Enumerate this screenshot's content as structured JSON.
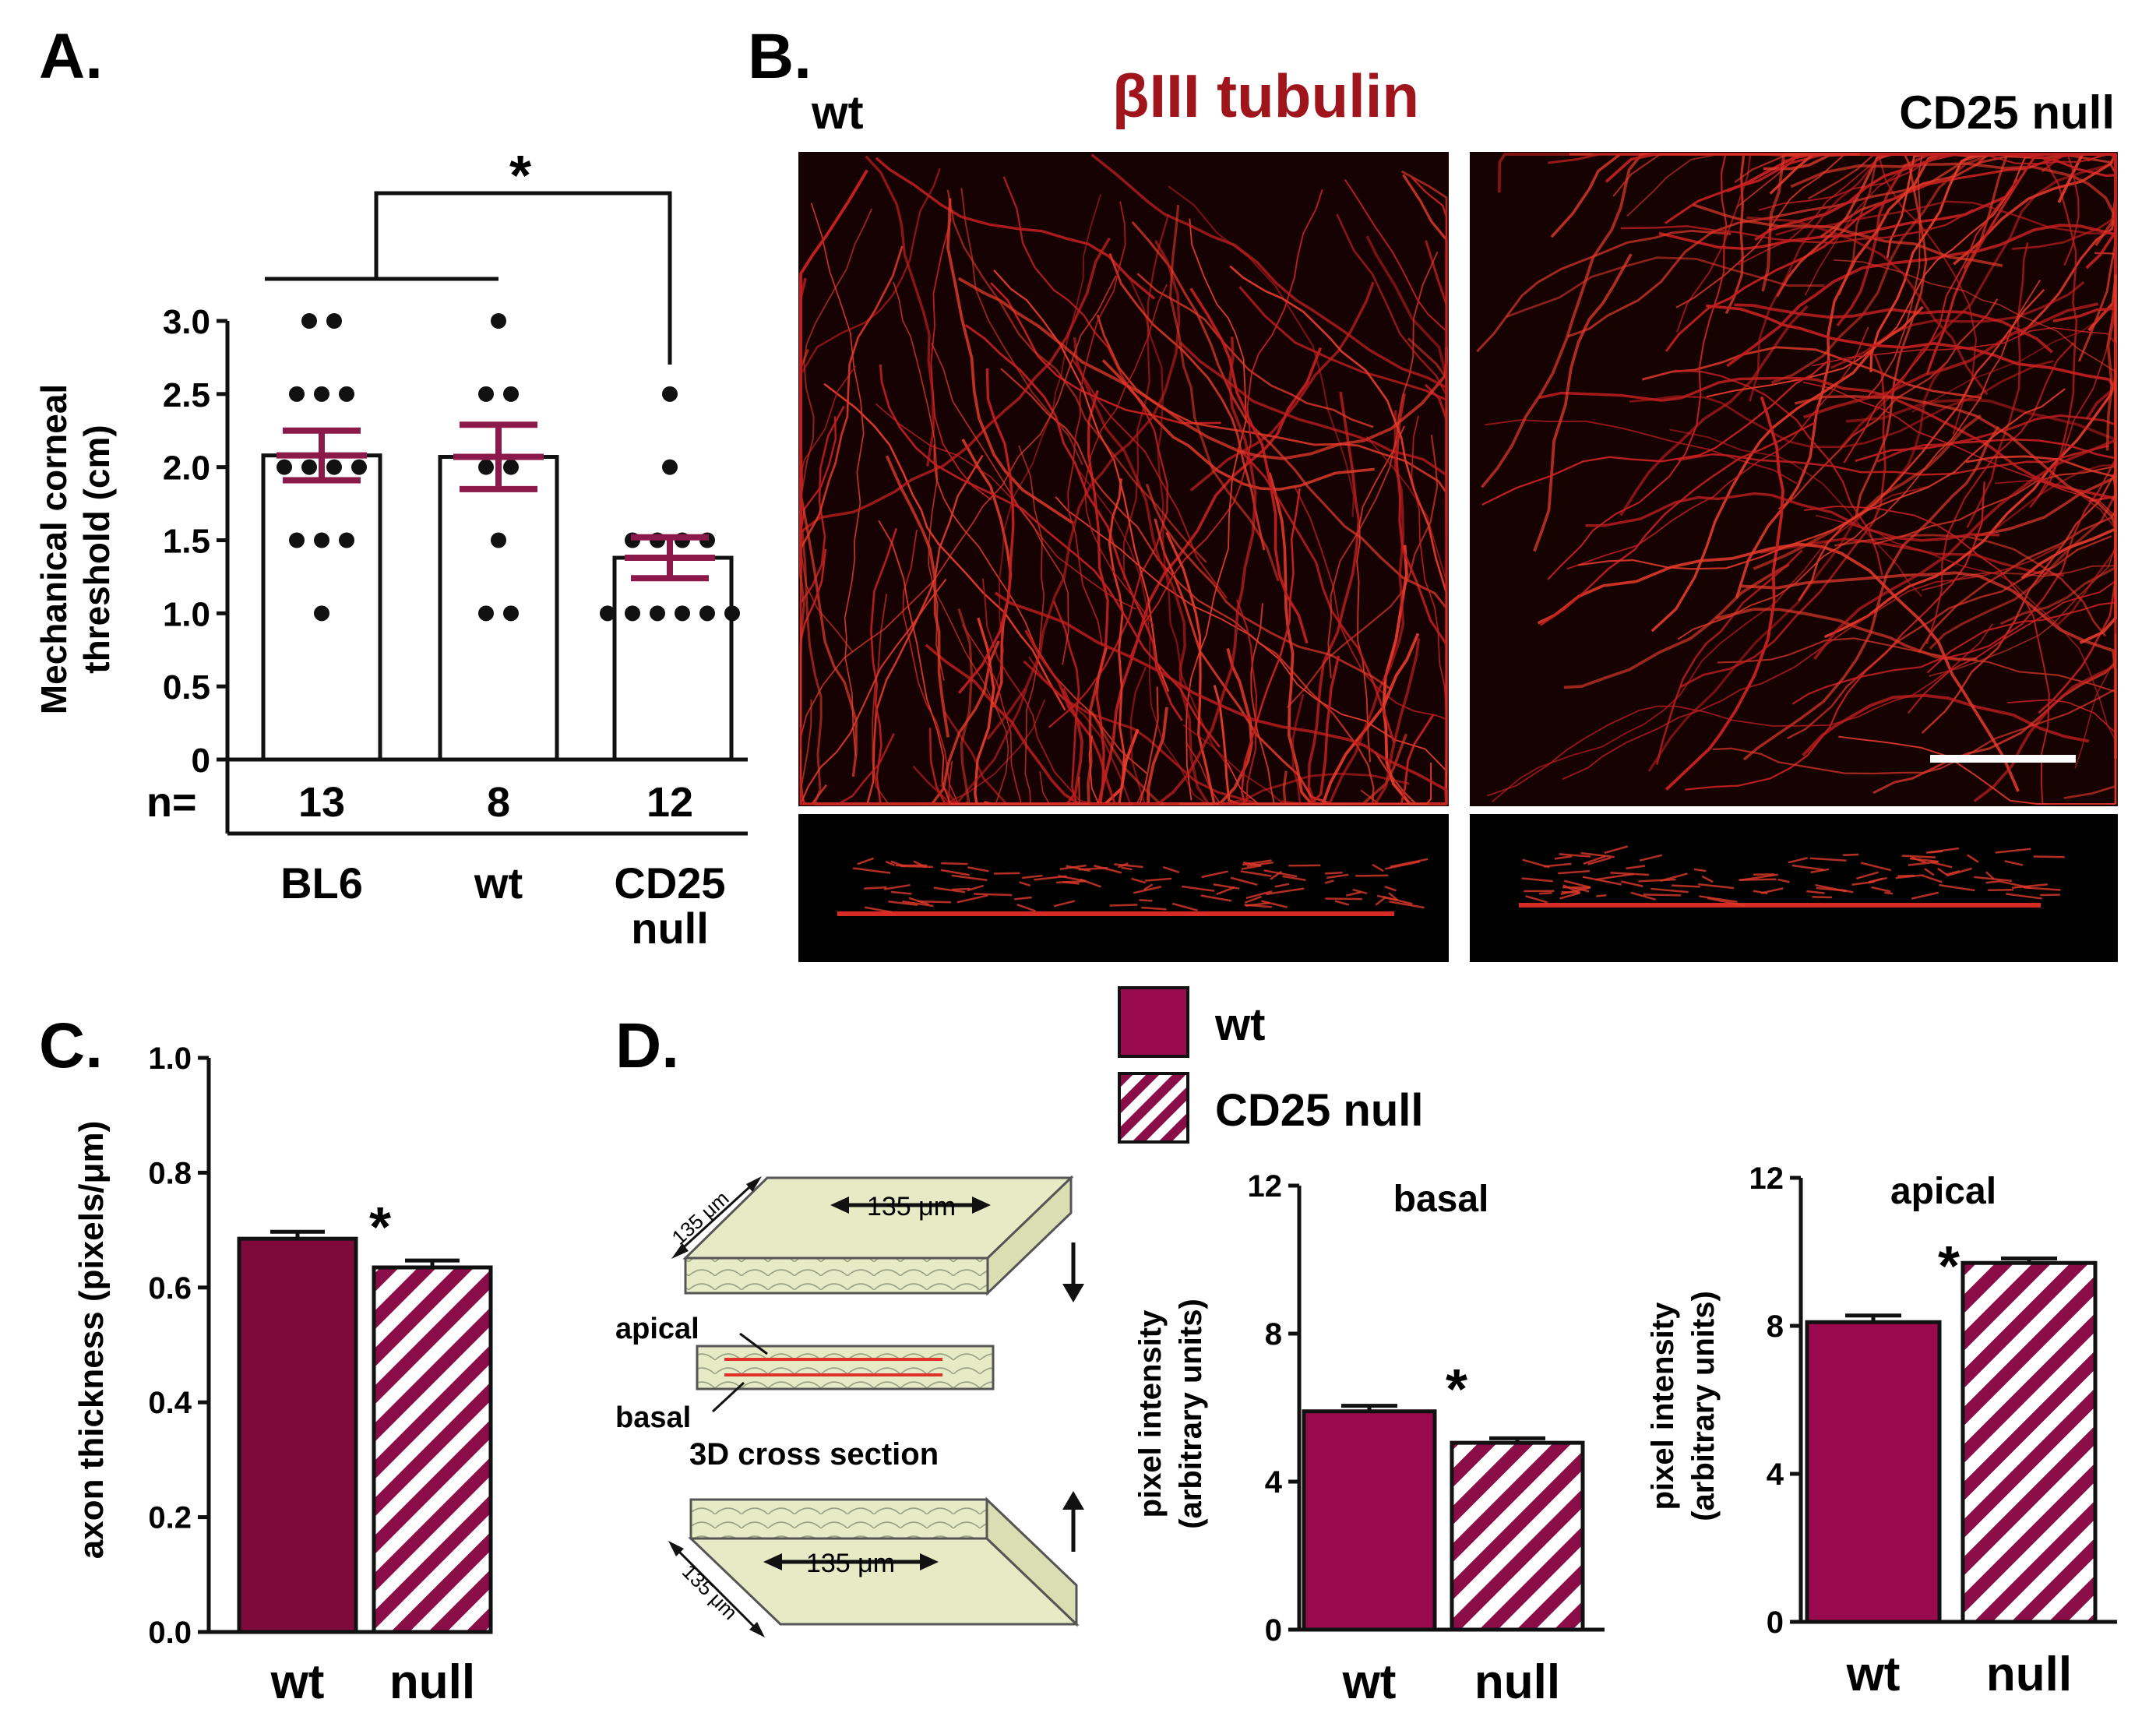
{
  "panels": {
    "a": "A.",
    "b": "B.",
    "c": "C.",
    "d": "D."
  },
  "colors": {
    "wt": "#9a0a4f",
    "null_stripe": "#8b0d47",
    "error": "#8b1a4a",
    "title_red": "#a0141c",
    "nerve_red": "#e02a2a"
  },
  "panel_a": {
    "ylabel_line1": "Mechanical corneal",
    "ylabel_line2": "threshold (cm)",
    "significance": "*",
    "n_prefix": "n=",
    "chart_data": {
      "type": "bar",
      "categories": [
        "BL6",
        "wt",
        "CD25 null"
      ],
      "category_lines": [
        [
          "BL6"
        ],
        [
          "wt"
        ],
        [
          "CD25",
          "null"
        ]
      ],
      "values": [
        2.08,
        2.07,
        1.38
      ],
      "sem": [
        0.17,
        0.22,
        0.14
      ],
      "n": [
        "13",
        "8",
        "12"
      ],
      "points": [
        [
          3.0,
          3.0,
          2.5,
          2.5,
          2.5,
          2.0,
          2.0,
          2.0,
          2.0,
          1.5,
          1.5,
          1.5,
          1.0
        ],
        [
          3.0,
          2.5,
          2.5,
          2.0,
          2.0,
          1.5,
          1.0,
          1.0
        ],
        [
          2.5,
          2.0,
          1.5,
          1.5,
          1.5,
          1.5,
          1.0,
          1.0,
          1.0,
          1.0,
          1.0,
          1.0
        ]
      ],
      "ylim": [
        0,
        3.0
      ],
      "yticks": [
        "0",
        "0.5",
        "1.0",
        "1.5",
        "2.0",
        "2.5",
        "3.0"
      ],
      "ytick_values": [
        0,
        0.5,
        1.0,
        1.5,
        2.0,
        2.5,
        3.0
      ]
    }
  },
  "panel_b": {
    "title": "βIII tubulin",
    "label_left": "wt",
    "label_right": "CD25 null"
  },
  "panel_c": {
    "ylabel": "axon thickness (pixels/μm)",
    "significance": "*",
    "chart_data": {
      "type": "bar",
      "categories": [
        "wt",
        "null"
      ],
      "values": [
        0.685,
        0.635
      ],
      "sem": [
        0.012,
        0.012
      ],
      "ylim": [
        0,
        1.0
      ],
      "yticks": [
        "0.0",
        "0.2",
        "0.4",
        "0.6",
        "0.8",
        "1.0"
      ],
      "ytick_values": [
        0,
        0.2,
        0.4,
        0.6,
        0.8,
        1.0
      ]
    }
  },
  "panel_d": {
    "legend": [
      {
        "label": "wt",
        "pattern": "solid"
      },
      {
        "label": "CD25 null",
        "pattern": "striped"
      }
    ],
    "diagram": {
      "top_width": "135 μm",
      "top_depth": "135 μm",
      "apical": "apical",
      "basal": "basal",
      "cross_section": "3D cross section",
      "bottom_width": "135 μm",
      "bottom_depth": "135 μm"
    },
    "basal": {
      "title": "basal",
      "ylabel_line1": "pixel intensity",
      "ylabel_line2": "(arbitrary units)",
      "significance": "*",
      "chart_data": {
        "type": "bar",
        "categories": [
          "wt",
          "null"
        ],
        "values": [
          5.9,
          5.05
        ],
        "sem": [
          0.15,
          0.12
        ],
        "ylim": [
          0,
          12
        ],
        "yticks": [
          "0",
          "4",
          "8",
          "12"
        ],
        "ytick_values": [
          0,
          4,
          8,
          12
        ]
      }
    },
    "apical": {
      "title": "apical",
      "ylabel_line1": "pixel intensity",
      "ylabel_line2": "(arbitrary units)",
      "significance": "*",
      "chart_data": {
        "type": "bar",
        "categories": [
          "wt",
          "null"
        ],
        "values": [
          8.1,
          9.7
        ],
        "sem": [
          0.18,
          0.12
        ],
        "ylim": [
          0,
          12
        ],
        "yticks": [
          "0",
          "4",
          "8",
          "12"
        ],
        "ytick_values": [
          0,
          4,
          8,
          12
        ]
      }
    }
  }
}
